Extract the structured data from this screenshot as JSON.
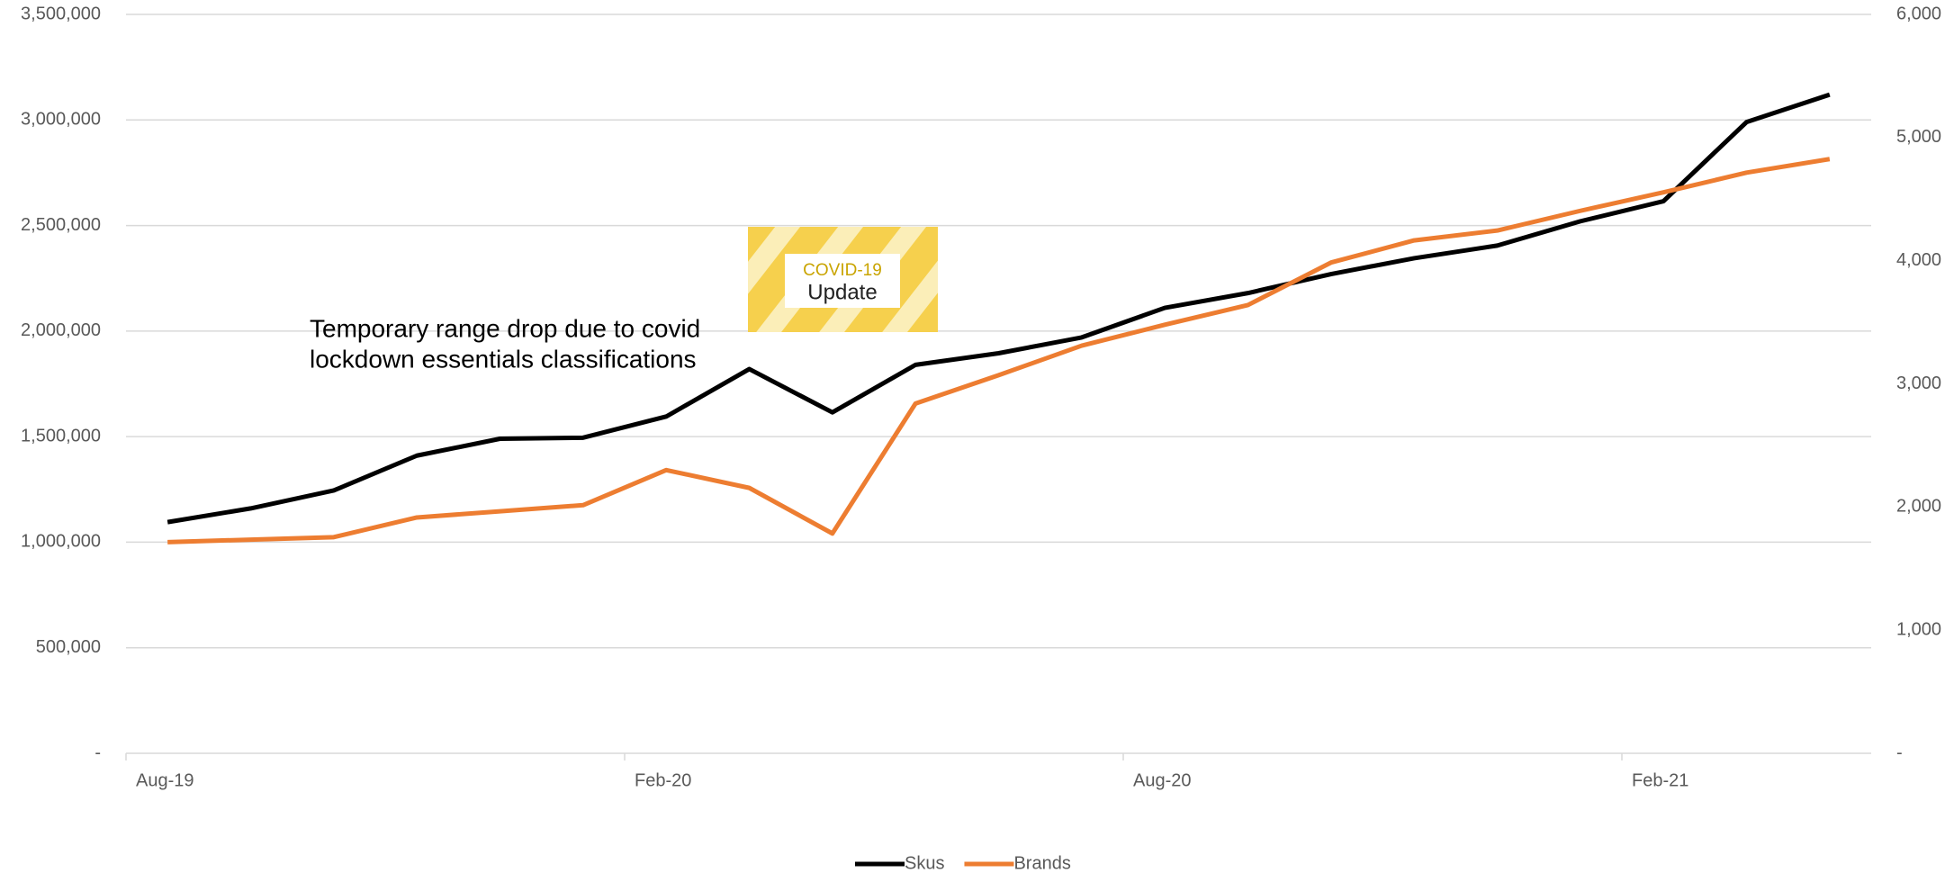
{
  "chart_data": {
    "type": "line",
    "categories": [
      "Aug-19",
      null,
      null,
      null,
      null,
      null,
      "Feb-20",
      null,
      null,
      null,
      null,
      null,
      "Aug-20",
      null,
      null,
      null,
      null,
      null,
      "Feb-21",
      null,
      null
    ],
    "series": [
      {
        "name": "Skus",
        "color": "#000000",
        "axis": "y",
        "values": [
          1095000,
          1160000,
          1245000,
          1410000,
          1490000,
          1495000,
          1595000,
          1820000,
          1615000,
          1840000,
          1895000,
          1970000,
          2110000,
          2180000,
          2270000,
          2345000,
          2405000,
          2520000,
          2615000,
          2990000,
          3120000
        ]
      },
      {
        "name": "Brands",
        "color": "#ed7d31",
        "axis": "y2",
        "values": [
          1715,
          1735,
          1755,
          1915,
          1965,
          2015,
          2300,
          2155,
          1785,
          2840,
          3070,
          3310,
          3480,
          3640,
          3985,
          4165,
          4245,
          4405,
          4555,
          4715,
          4825
        ]
      }
    ],
    "ylim": [
      0,
      3500000
    ],
    "yticks": [
      {
        "value": 0,
        "label": "-"
      },
      {
        "value": 500000,
        "label": "500,000"
      },
      {
        "value": 1000000,
        "label": "1,000,000"
      },
      {
        "value": 1500000,
        "label": "1,500,000"
      },
      {
        "value": 2000000,
        "label": "2,000,000"
      },
      {
        "value": 2500000,
        "label": "2,500,000"
      },
      {
        "value": 3000000,
        "label": "3,000,000"
      },
      {
        "value": 3500000,
        "label": "3,500,000"
      }
    ],
    "y2lim": [
      0,
      6000
    ],
    "y2ticks": [
      {
        "value": 0,
        "label": "-"
      },
      {
        "value": 1000,
        "label": "1,000"
      },
      {
        "value": 2000,
        "label": "2,000"
      },
      {
        "value": 3000,
        "label": "3,000"
      },
      {
        "value": 4000,
        "label": "4,000"
      },
      {
        "value": 5000,
        "label": "5,000"
      },
      {
        "value": 6000,
        "label": "6,000"
      }
    ],
    "grid": true,
    "legend": "bottom",
    "annotation": [
      "Temporary range drop due to covid",
      "lockdown essentials classifications"
    ],
    "badge": [
      "COVID-19",
      "Update"
    ]
  }
}
